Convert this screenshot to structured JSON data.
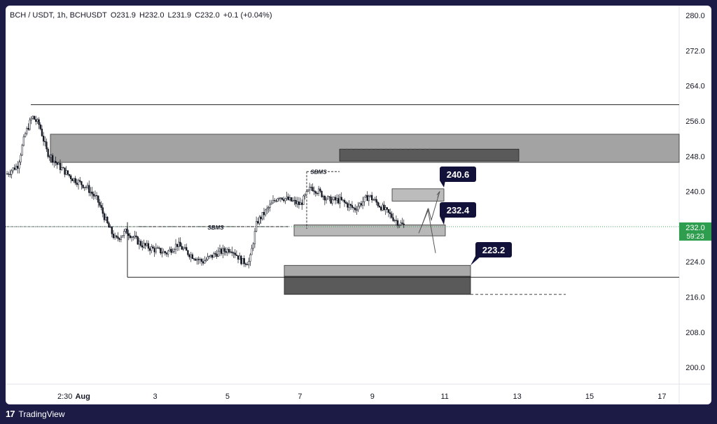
{
  "header": {
    "pair": "BCH / USDT, 1h, BCHUSDT",
    "open": "O231.9",
    "high": "H232.0",
    "low": "L231.9",
    "close": "C232.0",
    "change": "+0.1 (+0.04%)"
  },
  "footer": {
    "brand": "TradingView",
    "logo_icon": "tradingview-logo-icon"
  },
  "colors": {
    "zone_light": "#a3a3a3",
    "zone_dark": "#5a5a5a",
    "price_tag": "#2e9e4e",
    "label_bg": "#11113a"
  },
  "chart_data": {
    "type": "candlestick",
    "y_ticks": [
      "200.0",
      "208.0",
      "216.0",
      "224.0",
      "232.0",
      "240.0",
      "248.0",
      "256.0",
      "264.0",
      "272.0",
      "280.0"
    ],
    "ylim": [
      196.0,
      282.0
    ],
    "x_ticks": [
      {
        "label": "2:30",
        "day": 0
      },
      {
        "label": "Aug",
        "day": 0.7
      },
      {
        "label": "3",
        "day": 2.7
      },
      {
        "label": "5",
        "day": 4.7
      },
      {
        "label": "7",
        "day": 6.7
      },
      {
        "label": "9",
        "day": 8.7
      },
      {
        "label": "11",
        "day": 10.7
      },
      {
        "label": "13",
        "day": 12.7
      },
      {
        "label": "15",
        "day": 14.7
      },
      {
        "label": "17",
        "day": 16.7
      }
    ],
    "current_price": {
      "price": "232.0",
      "countdown": "59:23",
      "value": 232.0
    },
    "targets": [
      {
        "label": "240.6",
        "value": 240.6
      },
      {
        "label": "232.4",
        "value": 232.4
      },
      {
        "label": "223.2",
        "value": 223.2
      }
    ],
    "annotations": [
      "SBMS",
      "SBMS"
    ],
    "price_path": [
      [
        0,
        244
      ],
      [
        0.3,
        246
      ],
      [
        0.5,
        253
      ],
      [
        0.7,
        257
      ],
      [
        0.9,
        255
      ],
      [
        1.1,
        249
      ],
      [
        1.4,
        246
      ],
      [
        1.8,
        243
      ],
      [
        2.2,
        241
      ],
      [
        2.5,
        238
      ],
      [
        2.8,
        232
      ],
      [
        3.0,
        229
      ],
      [
        3.3,
        231
      ],
      [
        3.7,
        228
      ],
      [
        4.0,
        227
      ],
      [
        4.4,
        226
      ],
      [
        4.7,
        228
      ],
      [
        5.0,
        226
      ],
      [
        5.4,
        224
      ],
      [
        5.8,
        226
      ],
      [
        6.2,
        227
      ],
      [
        6.5,
        224
      ],
      [
        6.7,
        224
      ],
      [
        6.9,
        233
      ],
      [
        7.2,
        236
      ],
      [
        7.5,
        239
      ],
      [
        7.8,
        238
      ],
      [
        8.1,
        237
      ],
      [
        8.4,
        241
      ],
      [
        8.6,
        240
      ],
      [
        8.9,
        238
      ],
      [
        9.2,
        238
      ],
      [
        9.6,
        236
      ],
      [
        10.0,
        239
      ],
      [
        10.4,
        236
      ],
      [
        10.8,
        233
      ],
      [
        11.0,
        232
      ]
    ]
  }
}
